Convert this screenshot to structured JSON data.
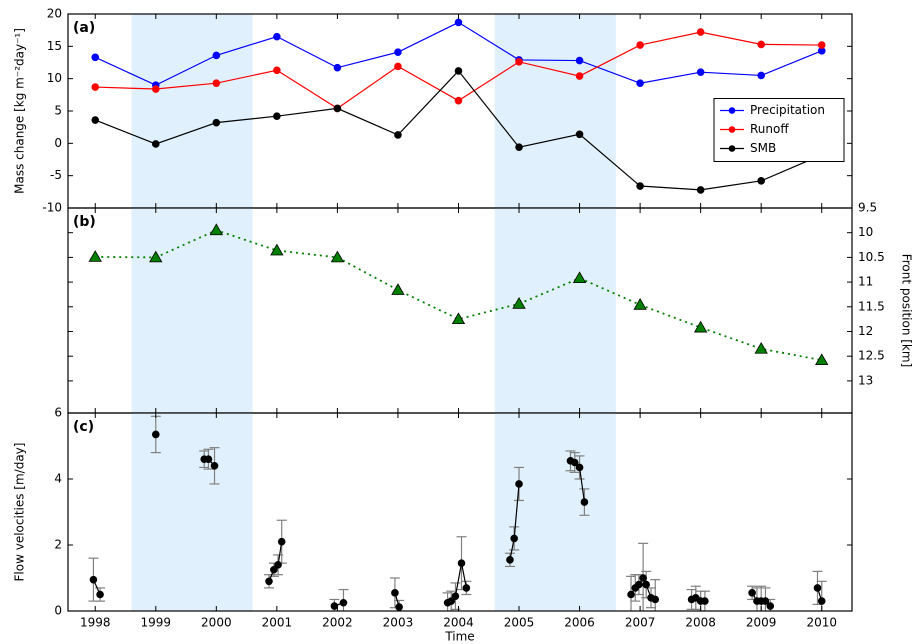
{
  "chart_data": [
    {
      "type": "line",
      "title": "(a)",
      "y_label": "Mass change [kg m⁻²day⁻¹]",
      "yaxis_side": "left",
      "marker": "circle",
      "xlim": [
        1997.55,
        2010.5
      ],
      "ylim": [
        -10,
        20
      ],
      "yticks": [
        -10,
        -5,
        0,
        5,
        10,
        15,
        20
      ],
      "shaded_x": [
        [
          1998.6,
          2000.6
        ],
        [
          2004.6,
          2006.6
        ]
      ],
      "x": [
        1998,
        1999,
        2000,
        2001,
        2002,
        2003,
        2004,
        2005,
        2006,
        2007,
        2008,
        2009,
        2010
      ],
      "legend": "center right",
      "series": [
        {
          "name": "Precipitation",
          "color": "#0000ff",
          "values": [
            13.3,
            9.0,
            13.6,
            16.5,
            11.7,
            14.1,
            18.7,
            12.9,
            12.8,
            9.3,
            11.0,
            10.5,
            14.3
          ]
        },
        {
          "name": "Runoff",
          "color": "#ff0000",
          "values": [
            8.7,
            8.4,
            9.3,
            11.3,
            5.4,
            11.9,
            6.6,
            12.6,
            10.4,
            15.2,
            17.2,
            15.3,
            15.2
          ]
        },
        {
          "name": "SMB",
          "color": "#000000",
          "values": [
            3.6,
            -0.1,
            3.2,
            4.2,
            5.4,
            1.3,
            11.2,
            -0.6,
            1.4,
            -6.6,
            -7.2,
            -5.8,
            -1.8
          ]
        }
      ]
    },
    {
      "type": "line",
      "title": "(b)",
      "y_label": "Front position [km]",
      "yaxis_side": "right",
      "y_inverted": true,
      "marker": "triangle",
      "linestyle": "dotted",
      "xlim": [
        1997.55,
        2010.5
      ],
      "ylim": [
        9.5,
        13.65
      ],
      "yticks": [
        9.5,
        10.0,
        10.5,
        11.0,
        11.5,
        12.0,
        12.5,
        13.0
      ],
      "x": [
        1998,
        1999,
        2000,
        2001,
        2002,
        2003,
        2004,
        2005,
        2006,
        2007,
        2008,
        2009,
        2010
      ],
      "series": [
        {
          "color": "#008000",
          "values": [
            10.49,
            10.5,
            9.95,
            10.36,
            10.5,
            11.16,
            11.75,
            11.44,
            10.92,
            11.46,
            11.92,
            12.35,
            12.58
          ]
        }
      ]
    },
    {
      "type": "errorbar",
      "title": "(c)",
      "y_label": "Flow velocities [m/day]",
      "x_label": "Time",
      "yaxis_side": "left",
      "marker": "circle",
      "xlim": [
        1997.55,
        2010.5
      ],
      "ylim": [
        0,
        6
      ],
      "yticks": [
        0,
        2,
        4,
        6
      ],
      "xticks": [
        1998,
        1999,
        2000,
        2001,
        2002,
        2003,
        2004,
        2005,
        2006,
        2007,
        2008,
        2009,
        2010
      ],
      "x": [
        1997.97,
        1998.08,
        null,
        1999.0,
        null,
        1999.8,
        1999.87,
        1999.97,
        null,
        2000.87,
        2000.95,
        2001.02,
        2001.08,
        null,
        2001.95,
        2002.1,
        null,
        2002.95,
        2003.02,
        null,
        2003.82,
        2003.88,
        2003.95,
        2004.05,
        2004.13,
        null,
        2004.85,
        2004.92,
        2005.0,
        null,
        2005.85,
        2005.92,
        2006.0,
        2006.08,
        null,
        2006.85,
        2006.92,
        2006.98,
        2007.05,
        2007.1,
        2007.18,
        2007.25,
        null,
        2007.85,
        2007.92,
        2008.0,
        2008.07,
        null,
        2008.85,
        2008.93,
        2009.0,
        2009.07,
        2009.15,
        null,
        2009.93,
        2010.0
      ],
      "series": [
        {
          "color": "#000000",
          "error_color": "#808080",
          "values": [
            0.95,
            0.5,
            null,
            5.35,
            null,
            4.6,
            4.6,
            4.4,
            null,
            0.9,
            1.25,
            1.4,
            2.1,
            null,
            0.15,
            0.25,
            null,
            0.55,
            0.12,
            null,
            0.25,
            0.3,
            0.45,
            1.45,
            0.7,
            null,
            1.55,
            2.2,
            3.85,
            null,
            4.55,
            4.5,
            4.35,
            3.3,
            null,
            0.5,
            0.7,
            0.8,
            1.0,
            0.8,
            0.4,
            0.35,
            null,
            0.35,
            0.4,
            0.3,
            0.3,
            null,
            0.55,
            0.3,
            0.3,
            0.3,
            0.15,
            null,
            0.7,
            0.3
          ],
          "errors": [
            0.65,
            0.2,
            null,
            0.55,
            null,
            0.25,
            0.3,
            0.55,
            null,
            0.2,
            0.2,
            0.3,
            0.65,
            null,
            0.2,
            0.4,
            null,
            0.45,
            0.2,
            null,
            0.3,
            0.3,
            0.4,
            0.8,
            0.2,
            null,
            0.2,
            0.35,
            0.5,
            null,
            0.3,
            0.3,
            0.35,
            0.4,
            null,
            0.55,
            0.4,
            0.3,
            1.05,
            0.4,
            0.3,
            0.6,
            null,
            0.3,
            0.35,
            0.3,
            0.3,
            null,
            0.2,
            0.4,
            0.45,
            0.4,
            0.2,
            null,
            0.5,
            0.6
          ]
        }
      ]
    }
  ]
}
